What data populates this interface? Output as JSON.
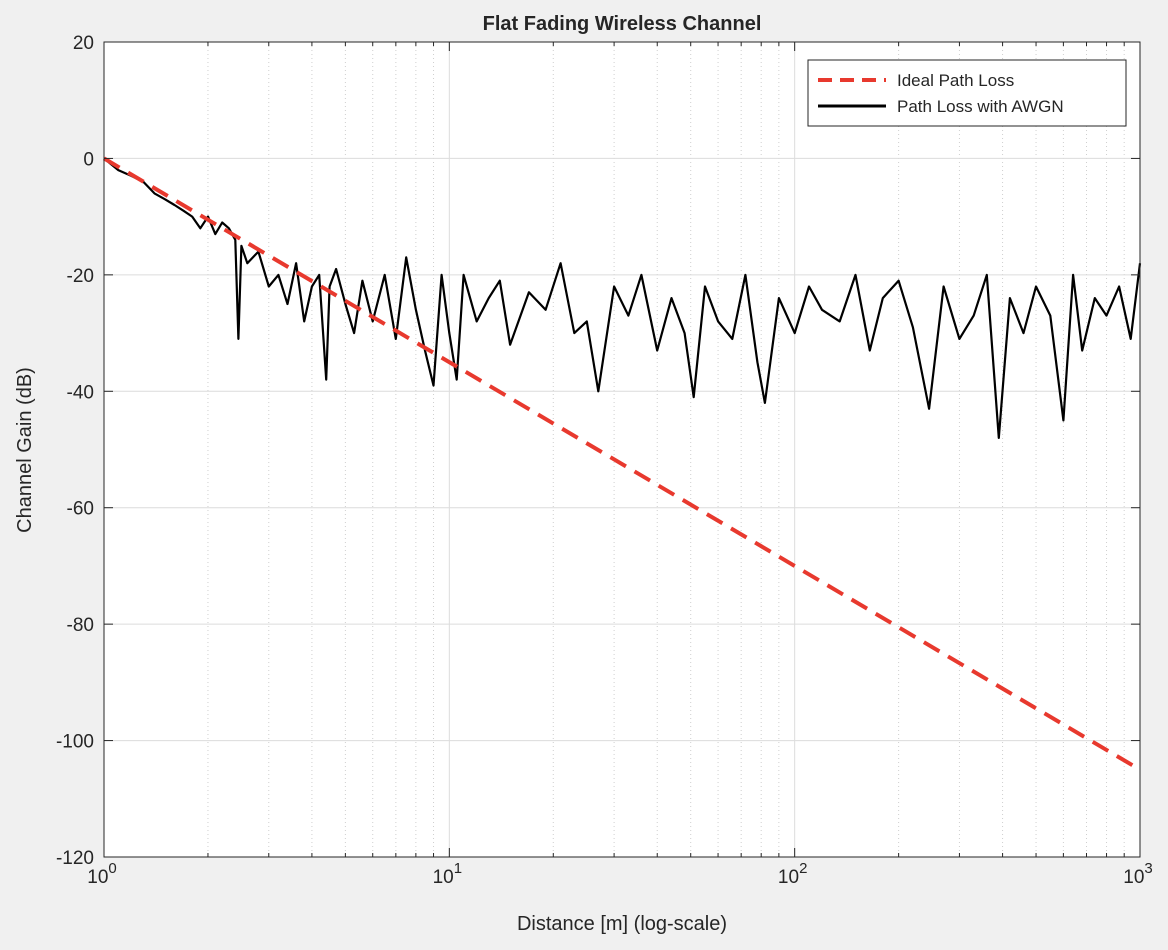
{
  "chart_data": {
    "type": "line",
    "title": "Flat Fading Wireless Channel",
    "xlabel": "Distance [m] (log-scale)",
    "ylabel": "Channel Gain (dB)",
    "xscale": "log",
    "xlim": [
      1,
      1000
    ],
    "ylim": [
      -120,
      20
    ],
    "grid": true,
    "minor_grid": true,
    "legend_position": "top-right",
    "yticks": [
      "20",
      "0",
      "-20",
      "-40",
      "-60",
      "-80",
      "-100",
      "-120"
    ],
    "xticks": [
      {
        "base": "10",
        "exp": "0"
      },
      {
        "base": "10",
        "exp": "1"
      },
      {
        "base": "10",
        "exp": "2"
      },
      {
        "base": "10",
        "exp": "3"
      }
    ],
    "series": [
      {
        "name": "Ideal Path Loss",
        "color": "#e8392e",
        "style": "dashed",
        "x": [
          1,
          1000
        ],
        "y": [
          0,
          -105
        ]
      },
      {
        "name": "Path Loss with AWGN",
        "color": "#000000",
        "style": "solid",
        "x": [
          1,
          1.1,
          1.2,
          1.3,
          1.4,
          1.5,
          1.6,
          1.7,
          1.8,
          1.9,
          2,
          2.1,
          2.2,
          2.3,
          2.4,
          2.45,
          2.5,
          2.6,
          2.8,
          3,
          3.2,
          3.4,
          3.6,
          3.8,
          4,
          4.2,
          4.4,
          4.5,
          4.7,
          5,
          5.3,
          5.6,
          6,
          6.5,
          7,
          7.5,
          8,
          8.5,
          9,
          9.5,
          10,
          10.5,
          11,
          12,
          13,
          14,
          15,
          17,
          19,
          21,
          23,
          25,
          27,
          30,
          33,
          36,
          40,
          44,
          48,
          51,
          55,
          60,
          66,
          72,
          78,
          82,
          90,
          100,
          110,
          120,
          135,
          150,
          165,
          180,
          200,
          220,
          245,
          270,
          300,
          330,
          360,
          390,
          420,
          460,
          500,
          550,
          600,
          640,
          680,
          740,
          800,
          870,
          940,
          1000
        ],
        "y": [
          0,
          -2,
          -3,
          -4,
          -6,
          -7,
          -8,
          -9,
          -10,
          -12,
          -10,
          -13,
          -11,
          -12,
          -14,
          -31,
          -15,
          -18,
          -16,
          -22,
          -20,
          -25,
          -18,
          -28,
          -22,
          -20,
          -38,
          -22,
          -19,
          -25,
          -30,
          -21,
          -28,
          -20,
          -31,
          -17,
          -26,
          -33,
          -39,
          -20,
          -30,
          -38,
          -20,
          -28,
          -24,
          -21,
          -32,
          -23,
          -26,
          -18,
          -30,
          -28,
          -40,
          -22,
          -27,
          -20,
          -33,
          -24,
          -30,
          -41,
          -22,
          -28,
          -31,
          -20,
          -35,
          -42,
          -24,
          -30,
          -22,
          -26,
          -28,
          -20,
          -33,
          -24,
          -21,
          -29,
          -43,
          -22,
          -31,
          -27,
          -20,
          -48,
          -24,
          -30,
          -22,
          -27,
          -45,
          -20,
          -33,
          -24,
          -27,
          -22,
          -31,
          -18
        ]
      }
    ]
  }
}
